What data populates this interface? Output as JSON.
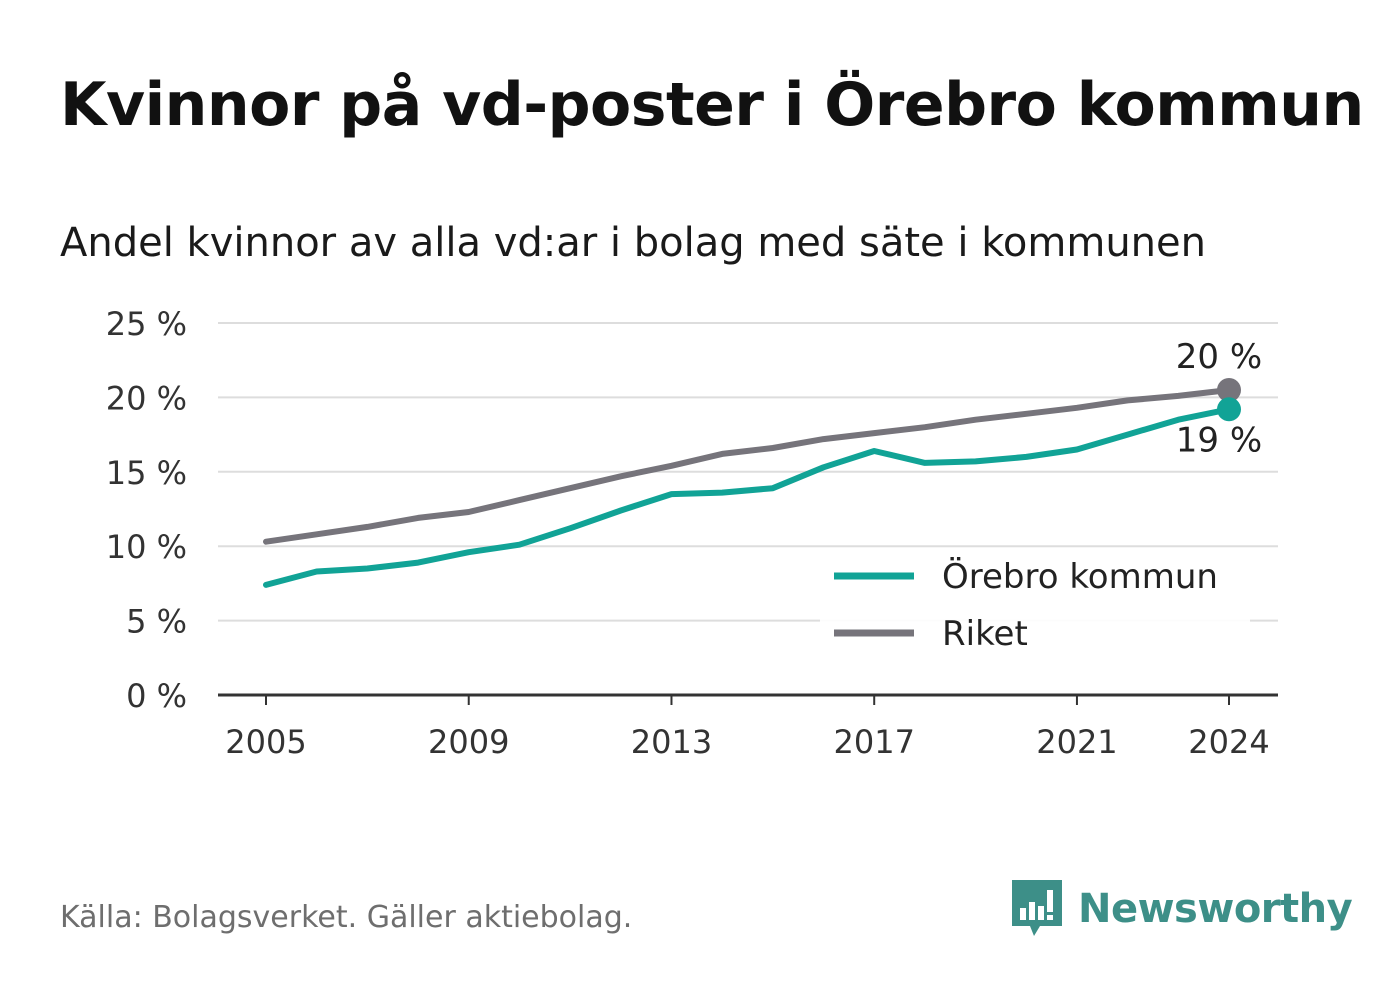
{
  "chart_data": {
    "type": "line",
    "title": "Kvinnor på vd-poster i Örebro kommun",
    "subtitle": "Andel kvinnor av alla vd:ar i bolag med säte i kommunen",
    "x": [
      2005,
      2006,
      2007,
      2008,
      2009,
      2010,
      2011,
      2012,
      2013,
      2014,
      2015,
      2016,
      2017,
      2018,
      2019,
      2020,
      2021,
      2022,
      2023,
      2024
    ],
    "x_ticks": [
      "2005",
      "2009",
      "2013",
      "2017",
      "2021",
      "2024"
    ],
    "y_ticks": [
      "0 %",
      "5 %",
      "10 %",
      "15 %",
      "20 %",
      "25 %"
    ],
    "ylim": [
      0,
      25
    ],
    "grid": true,
    "legend_position": "bottom-right",
    "series": [
      {
        "name": "Örebro kommun",
        "color": "#11a396",
        "values": [
          7.4,
          8.3,
          8.5,
          8.9,
          9.6,
          10.1,
          11.2,
          12.4,
          13.5,
          13.6,
          13.9,
          15.3,
          16.4,
          15.6,
          15.7,
          16.0,
          16.5,
          17.5,
          18.5,
          19.2
        ],
        "end_label": "19 %"
      },
      {
        "name": "Riket",
        "color": "#76747b",
        "values": [
          10.3,
          10.8,
          11.3,
          11.9,
          12.3,
          13.1,
          13.9,
          14.7,
          15.4,
          16.2,
          16.6,
          17.2,
          17.6,
          18.0,
          18.5,
          18.9,
          19.3,
          19.8,
          20.1,
          20.5
        ],
        "end_label": "20 %"
      }
    ],
    "colors": {
      "grid": "#dddddd",
      "axis": "#333333",
      "text": "#333333"
    }
  },
  "footer": {
    "source": "Källa: Bolagsverket. Gäller aktiebolag.",
    "brand": "Newsworthy",
    "brand_color": "#3d8f88"
  }
}
